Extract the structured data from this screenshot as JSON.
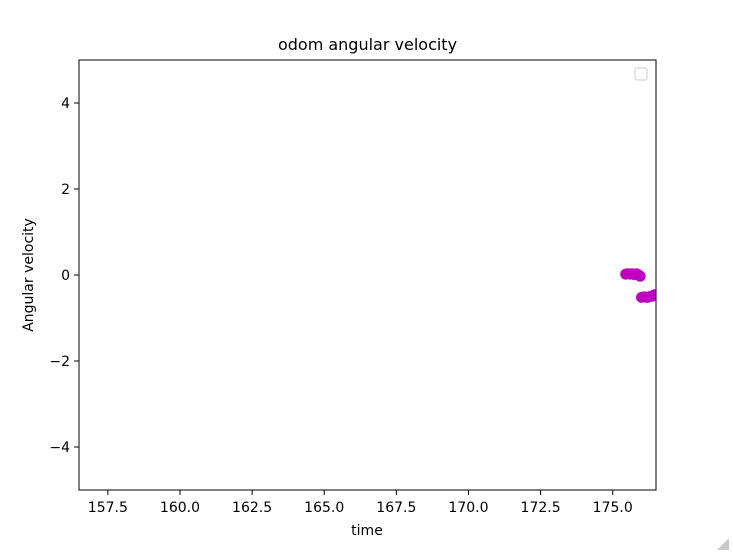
{
  "chart_data": {
    "type": "scatter",
    "title": "odom angular velocity",
    "xlabel": "time",
    "ylabel": "Angular velocity",
    "xlim": [
      156.5,
      176.5
    ],
    "ylim": [
      -5,
      5
    ],
    "xticks": [
      157.5,
      160.0,
      162.5,
      165.0,
      167.5,
      170.0,
      172.5,
      175.0
    ],
    "xtick_labels": [
      "157.5",
      "160.0",
      "162.5",
      "165.0",
      "167.5",
      "170.0",
      "172.5",
      "175.0"
    ],
    "yticks": [
      -4,
      -2,
      0,
      2,
      4
    ],
    "ytick_labels": [
      "−4",
      "−2",
      "0",
      "2",
      "4"
    ],
    "grid": false,
    "legend": {
      "placement": "top-right",
      "entries": []
    },
    "series": [
      {
        "color": "#bf00bf",
        "points": [
          {
            "x": 175.45,
            "y": 0.02
          },
          {
            "x": 175.52,
            "y": 0.03
          },
          {
            "x": 175.6,
            "y": 0.02
          },
          {
            "x": 175.68,
            "y": 0.03
          },
          {
            "x": 175.75,
            "y": 0.01
          },
          {
            "x": 175.82,
            "y": 0.03
          },
          {
            "x": 175.9,
            "y": 0.0
          },
          {
            "x": 175.95,
            "y": -0.03
          },
          {
            "x": 176.0,
            "y": -0.52
          },
          {
            "x": 176.1,
            "y": -0.51
          },
          {
            "x": 176.2,
            "y": -0.52
          },
          {
            "x": 176.3,
            "y": -0.5
          },
          {
            "x": 176.4,
            "y": -0.49
          },
          {
            "x": 176.45,
            "y": -0.46
          }
        ]
      }
    ]
  }
}
